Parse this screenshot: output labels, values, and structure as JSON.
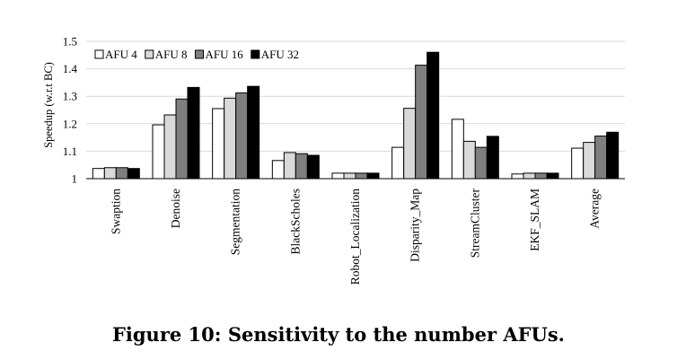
{
  "caption": "Figure 10: Sensitivity to the number AFUs.",
  "chart_data": {
    "type": "bar",
    "title": "",
    "xlabel": "",
    "ylabel": "Speedup (w.r.t BC)",
    "ylim": [
      1,
      1.5
    ],
    "yticks": [
      "1",
      "1.1",
      "1.2",
      "1.3",
      "1.4",
      "1.5"
    ],
    "grid": true,
    "legend_position": "top-left",
    "categories": [
      "Swaption",
      "Denoise",
      "Segmentation",
      "BlackScholes",
      "Robot_Localization",
      "Disparity_Map",
      "StreamCluster",
      "EKF_SLAM",
      "Average"
    ],
    "series": [
      {
        "name": "AFU 4",
        "color": "#ffffff",
        "values": [
          1.037,
          1.196,
          1.255,
          1.066,
          1.02,
          1.114,
          1.216,
          1.017,
          1.111
        ]
      },
      {
        "name": "AFU 8",
        "color": "#d9d9d9",
        "values": [
          1.04,
          1.232,
          1.293,
          1.095,
          1.02,
          1.256,
          1.136,
          1.02,
          1.132
        ]
      },
      {
        "name": "AFU 16",
        "color": "#7f7f7f",
        "values": [
          1.04,
          1.29,
          1.312,
          1.091,
          1.02,
          1.413,
          1.114,
          1.02,
          1.155
        ]
      },
      {
        "name": "AFU 32",
        "color": "#000000",
        "values": [
          1.037,
          1.332,
          1.336,
          1.085,
          1.02,
          1.46,
          1.154,
          1.02,
          1.169
        ]
      }
    ]
  }
}
